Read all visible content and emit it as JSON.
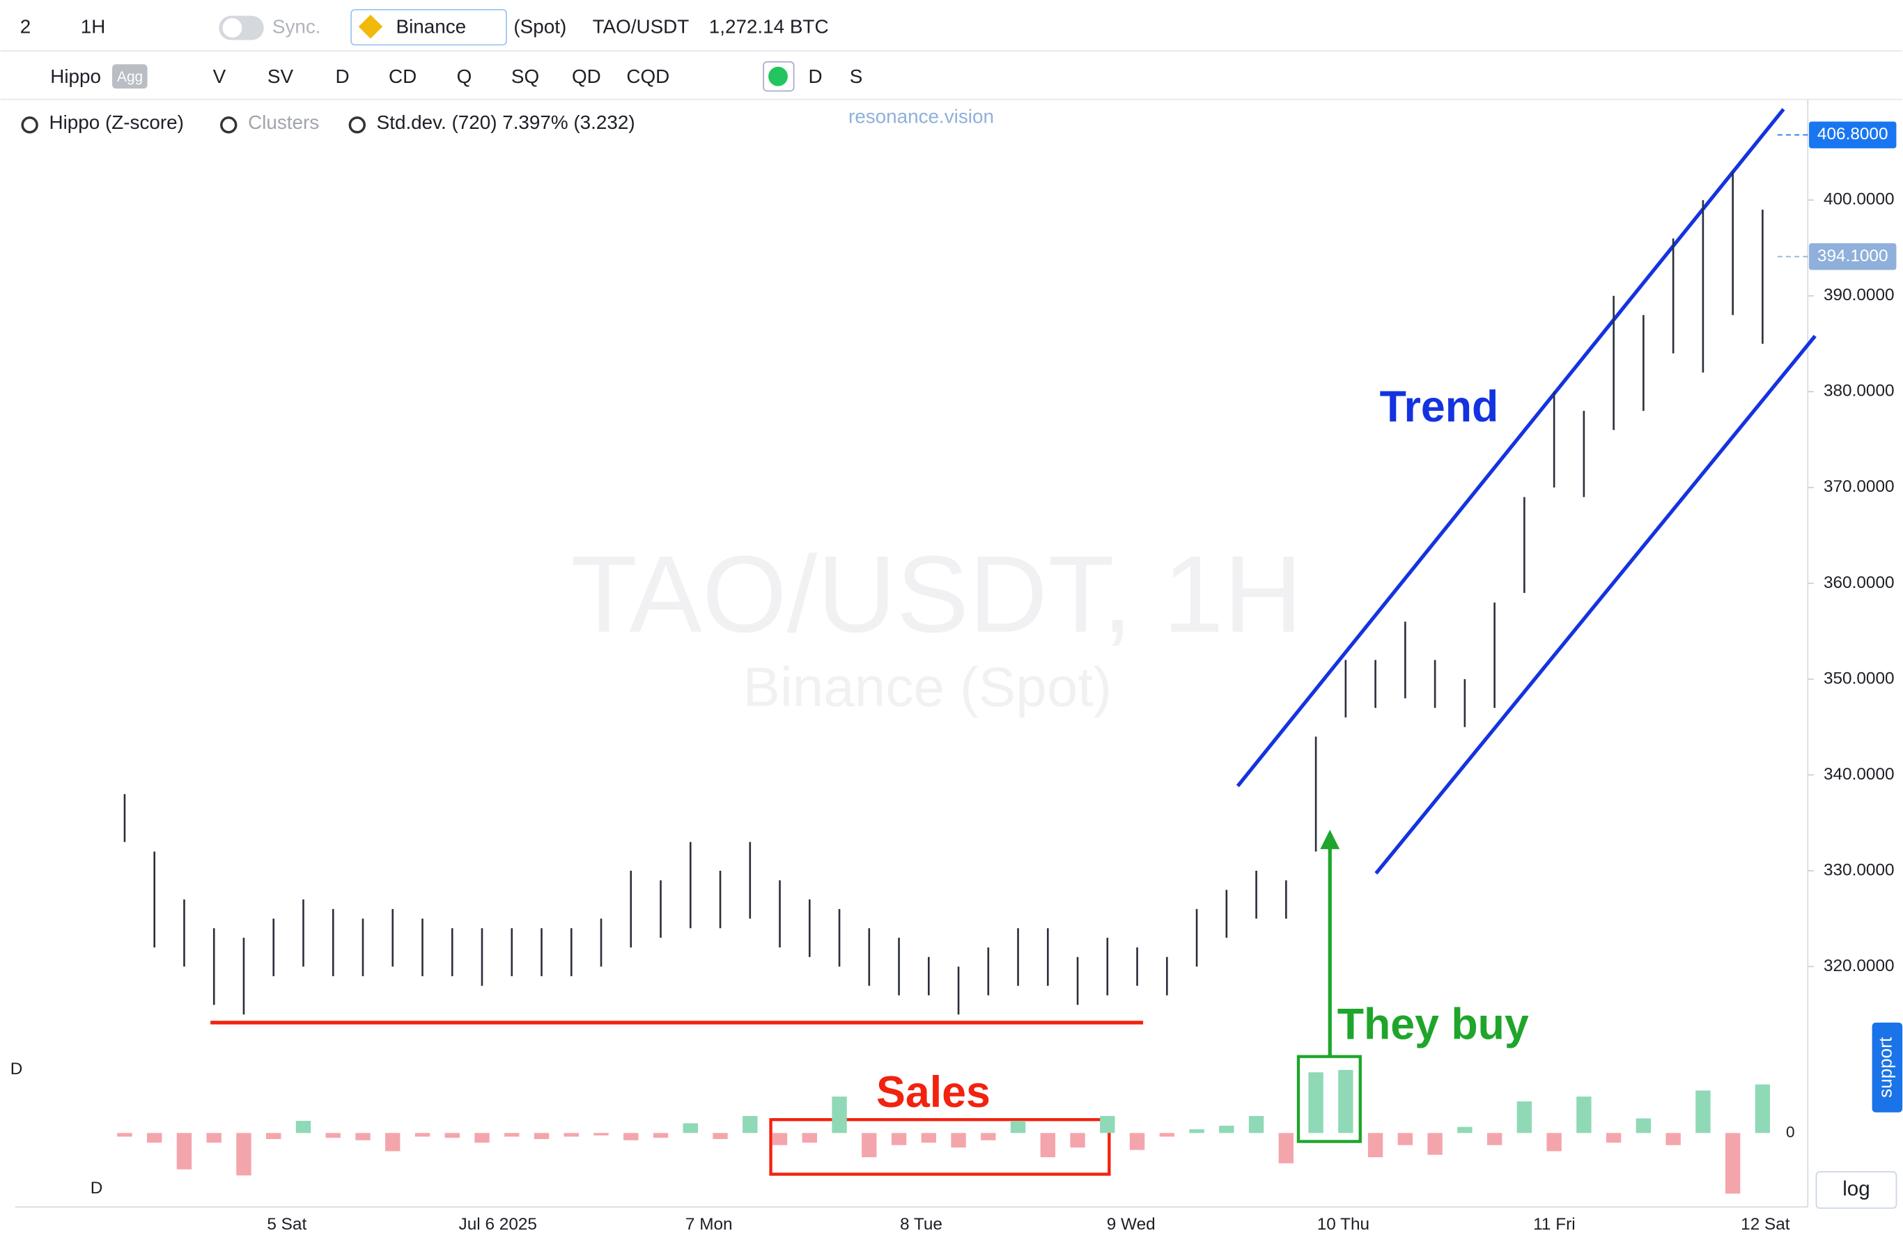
{
  "toolbar": {
    "row1": [
      "2",
      "1H",
      "Sync.",
      "Binance",
      "(Spot)",
      "TAO/USDT",
      "1,272.14 BTC"
    ],
    "row2": [
      "Hippo",
      "Agg",
      "V",
      "SV",
      "D",
      "CD",
      "Q",
      "SQ",
      "QD",
      "CQD",
      "D",
      "S"
    ],
    "legend": [
      "Hippo (Z-score)",
      "Clusters",
      "Std.dev. (720) 7.397% (3.232)"
    ],
    "brand": "resonance.vision",
    "log": "log",
    "support": "support"
  },
  "chart_data": [
    {
      "type": "ohlc",
      "title": "TAO/USDT, 1H",
      "subtitle": "Binance (Spot)",
      "date_labels": [
        "5 Sat",
        "Jul 6 2025",
        "7 Mon",
        "8 Tue",
        "9 Wed",
        "10 Thu",
        "11 Fri",
        "12 Sat"
      ],
      "ylim": [
        312,
        410.5
      ],
      "yticks": [
        {
          "value": 320,
          "label": "320.0000"
        },
        {
          "value": 330,
          "label": "330.0000"
        },
        {
          "value": 340,
          "label": "340.0000"
        },
        {
          "value": 350,
          "label": "350.0000"
        },
        {
          "value": 360,
          "label": "360.0000"
        },
        {
          "value": 370,
          "label": "370.0000"
        },
        {
          "value": 380,
          "label": "380.0000"
        },
        {
          "value": 390,
          "label": "390.0000"
        },
        {
          "value": 400,
          "label": "400.0000"
        }
      ],
      "markers": [
        {
          "value": 406.8,
          "label": "406.8000",
          "color": "#1976f0"
        },
        {
          "value": 394.1,
          "label": "394.1000",
          "color": "#8fb0da"
        }
      ],
      "color": "#2a2f3a",
      "lows": [
        333,
        322,
        320,
        316,
        315,
        319,
        320,
        319,
        319,
        320,
        319,
        319,
        318,
        319,
        319,
        319,
        320,
        322,
        323,
        324,
        324,
        325,
        322,
        321,
        320,
        318,
        317,
        317,
        315,
        317,
        318,
        318,
        316,
        317,
        318,
        317,
        320,
        323,
        325,
        325,
        332,
        346,
        347,
        348,
        347,
        345,
        347,
        359,
        370,
        369,
        376,
        378,
        384,
        382,
        388,
        385
      ],
      "highs": [
        338,
        332,
        327,
        324,
        323,
        325,
        327,
        326,
        325,
        326,
        325,
        324,
        324,
        324,
        324,
        324,
        325,
        330,
        329,
        333,
        330,
        333,
        329,
        327,
        326,
        324,
        323,
        321,
        320,
        322,
        324,
        324,
        321,
        323,
        322,
        321,
        326,
        328,
        330,
        329,
        344,
        352,
        352,
        356,
        352,
        350,
        358,
        369,
        380,
        378,
        390,
        388,
        396,
        400,
        403,
        399
      ],
      "annotations": [
        "Trend",
        "They buy",
        "Sales"
      ]
    },
    {
      "type": "bar",
      "label": "D",
      "ylim": [
        -60,
        60
      ],
      "yticks": [
        0
      ],
      "up_color": "#8fd9b6",
      "down_color": "#f4a5ab",
      "values": [
        -3,
        -8,
        -30,
        -8,
        -35,
        -5,
        10,
        -4,
        -6,
        -15,
        -3,
        -4,
        -8,
        -3,
        -5,
        -3,
        -2,
        -6,
        -4,
        8,
        -5,
        14,
        -10,
        -8,
        30,
        -20,
        -10,
        -8,
        -12,
        -6,
        10,
        -20,
        -12,
        14,
        -14,
        -3,
        3,
        6,
        14,
        -25,
        50,
        52,
        -20,
        -10,
        -18,
        5,
        -10,
        26,
        -15,
        30,
        -8,
        12,
        -10,
        35,
        -50,
        40
      ]
    }
  ]
}
